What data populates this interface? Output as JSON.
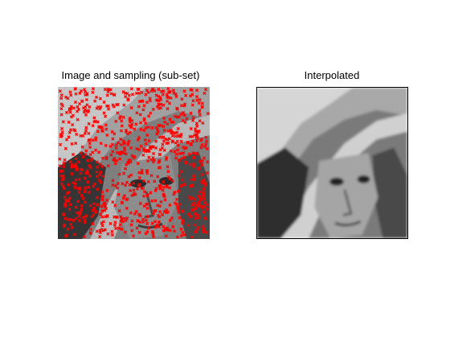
{
  "left_panel": {
    "title": "Image and sampling (sub-set)",
    "marker_color": "#ff0000",
    "image_description": "grayscale portrait of a woman in a wide-brimmed hat, overlaid with red cross sample markers"
  },
  "right_panel": {
    "title": "Interpolated",
    "image_description": "grayscale interpolated portrait of a woman in a wide-brimmed hat"
  }
}
